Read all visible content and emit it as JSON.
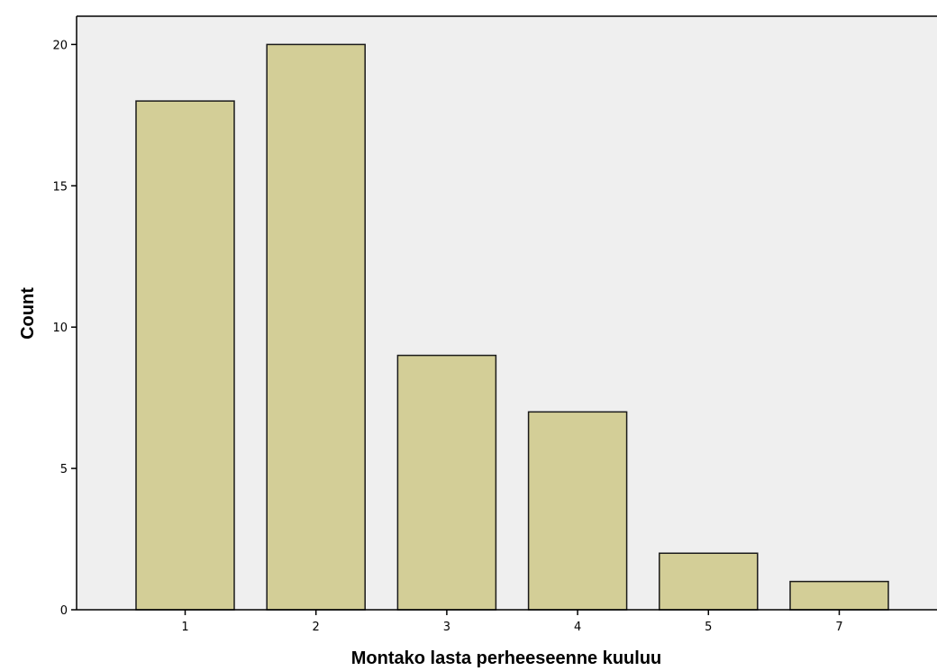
{
  "chart_data": {
    "type": "bar",
    "title": "",
    "xlabel": "Montako lasta perheeseenne kuuluu",
    "ylabel": "Count",
    "categories": [
      "1",
      "2",
      "3",
      "4",
      "5",
      "7"
    ],
    "values": [
      18,
      20,
      9,
      7,
      2,
      1
    ],
    "ylim": [
      0,
      21
    ],
    "yticks": [
      "0",
      "5",
      "10",
      "15",
      "20"
    ],
    "grid": false,
    "legend": "none"
  },
  "colors": {
    "bar_fill": "#d3ce97",
    "bar_stroke": "#1a1a1a",
    "plot_background": "#efefef",
    "axis": "#000000"
  }
}
